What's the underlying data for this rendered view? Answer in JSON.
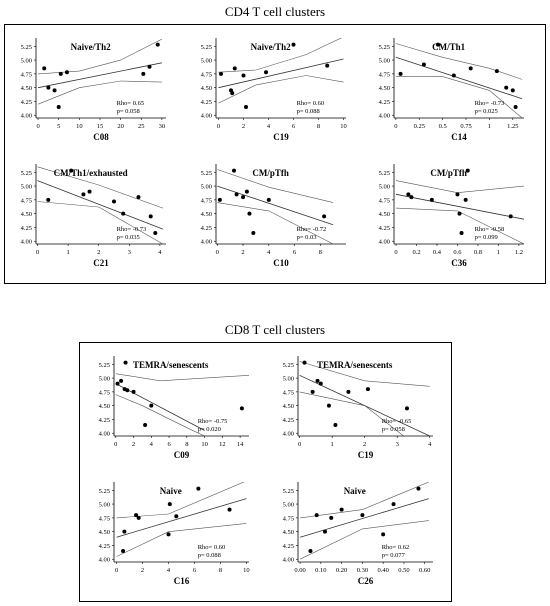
{
  "sections": [
    {
      "title": "CD4 T cell clusters"
    },
    {
      "title": "CD8 T cell clusters"
    }
  ],
  "chart_data": [
    {
      "type": "scatter",
      "group": "CD4",
      "title": "Naive/Th2",
      "xlabel": "C08",
      "xticks": [
        0,
        5,
        10,
        15,
        20,
        25,
        30
      ],
      "yticks": [
        4.0,
        4.25,
        4.5,
        4.75,
        5.0,
        5.25
      ],
      "xlim": [
        -0.5,
        31
      ],
      "ylim": [
        3.95,
        5.4
      ],
      "rho_label": "Rho= 0.65",
      "p_label": "p= 0.058",
      "points": [
        [
          1.5,
          4.85
        ],
        [
          2.5,
          4.5
        ],
        [
          4,
          4.45
        ],
        [
          5,
          4.15
        ],
        [
          5.5,
          4.75
        ],
        [
          7,
          4.78
        ],
        [
          25.5,
          4.75
        ],
        [
          27,
          4.88
        ],
        [
          29,
          5.28
        ]
      ],
      "fit": [
        [
          0,
          4.5
        ],
        [
          30,
          4.95
        ]
      ],
      "ci_upper": [
        [
          0,
          4.75
        ],
        [
          10,
          4.8
        ],
        [
          20,
          5.0
        ],
        [
          30,
          5.38
        ]
      ],
      "ci_lower": [
        [
          0,
          4.2
        ],
        [
          10,
          4.5
        ],
        [
          20,
          4.62
        ],
        [
          30,
          4.6
        ]
      ]
    },
    {
      "type": "scatter",
      "group": "CD4",
      "title": "Naive/Th2",
      "xlabel": "C19",
      "xticks": [
        0,
        2,
        4,
        6,
        8,
        10
      ],
      "yticks": [
        4.0,
        4.25,
        4.5,
        4.75,
        5.0,
        5.25
      ],
      "xlim": [
        -0.2,
        10.2
      ],
      "ylim": [
        3.95,
        5.4
      ],
      "rho_label": "Rho= 0.60",
      "p_label": "p= 0.088",
      "points": [
        [
          0.2,
          4.75
        ],
        [
          1.0,
          4.45
        ],
        [
          1.1,
          4.4
        ],
        [
          1.3,
          4.85
        ],
        [
          2.0,
          4.72
        ],
        [
          2.2,
          4.15
        ],
        [
          3.8,
          4.78
        ],
        [
          6.0,
          5.28
        ],
        [
          8.7,
          4.9
        ]
      ],
      "fit": [
        [
          0,
          4.5
        ],
        [
          10,
          5.02
        ]
      ],
      "ci_upper": [
        [
          0,
          4.78
        ],
        [
          3,
          4.82
        ],
        [
          7,
          5.1
        ],
        [
          10,
          5.42
        ]
      ],
      "ci_lower": [
        [
          0,
          4.22
        ],
        [
          3,
          4.55
        ],
        [
          7,
          4.72
        ],
        [
          10,
          4.6
        ]
      ]
    },
    {
      "type": "scatter",
      "group": "CD4",
      "title": "CM/Th1",
      "xlabel": "C14",
      "xticks": [
        0.0,
        0.25,
        0.5,
        0.75,
        1.0,
        1.25
      ],
      "ytick_labels": [
        "4.00",
        "4.25",
        "4.50",
        "4.75",
        "5.00",
        "5.25"
      ],
      "yticks": [
        4.0,
        4.25,
        4.5,
        4.75,
        5.0,
        5.25
      ],
      "xlim": [
        -0.02,
        1.37
      ],
      "ylim": [
        3.95,
        5.4
      ],
      "rho_label": "Rho= -0.73",
      "p_label": "p= 0.025",
      "points": [
        [
          0.05,
          4.75
        ],
        [
          0.3,
          4.92
        ],
        [
          0.45,
          5.28
        ],
        [
          0.62,
          4.72
        ],
        [
          0.8,
          4.85
        ],
        [
          1.08,
          4.8
        ],
        [
          1.18,
          4.5
        ],
        [
          1.25,
          4.45
        ],
        [
          1.28,
          4.15
        ]
      ],
      "fit": [
        [
          0,
          5.05
        ],
        [
          1.35,
          4.3
        ]
      ],
      "ci_upper": [
        [
          0,
          5.3
        ],
        [
          0.5,
          5.05
        ],
        [
          1.0,
          4.85
        ],
        [
          1.35,
          4.65
        ]
      ],
      "ci_lower": [
        [
          0,
          4.7
        ],
        [
          0.5,
          4.7
        ],
        [
          1.0,
          4.45
        ],
        [
          1.35,
          3.95
        ]
      ]
    },
    {
      "type": "scatter",
      "group": "CD4",
      "title": "CM/Th1/exhausted",
      "xlabel": "C21",
      "xticks": [
        0,
        1,
        2,
        3,
        4
      ],
      "ytick_labels": [
        "4.00",
        "4.25",
        "4.50",
        "4.75",
        "5.00",
        "5.25"
      ],
      "yticks": [
        4.0,
        4.25,
        4.5,
        4.75,
        5.0,
        5.25
      ],
      "xlim": [
        -0.05,
        4.2
      ],
      "ylim": [
        3.95,
        5.4
      ],
      "rho_label": "Rho= -0.73",
      "p_label": "p= 0.035",
      "points": [
        [
          0.35,
          4.75
        ],
        [
          1.1,
          5.28
        ],
        [
          1.5,
          4.85
        ],
        [
          1.7,
          4.9
        ],
        [
          2.5,
          4.72
        ],
        [
          2.8,
          4.5
        ],
        [
          3.3,
          4.8
        ],
        [
          3.7,
          4.45
        ],
        [
          3.85,
          4.15
        ]
      ],
      "fit": [
        [
          0,
          5.1
        ],
        [
          4.1,
          4.22
        ]
      ],
      "ci_upper": [
        [
          0,
          5.35
        ],
        [
          2,
          5.02
        ],
        [
          4.1,
          4.6
        ]
      ],
      "ci_lower": [
        [
          0,
          4.72
        ],
        [
          2,
          4.62
        ],
        [
          4.1,
          3.95
        ]
      ]
    },
    {
      "type": "scatter",
      "group": "CD4",
      "title": "CM/pTfh",
      "xlabel": "C10",
      "xticks": [
        0,
        2,
        4,
        6,
        8
      ],
      "yticks": [
        4.0,
        4.25,
        4.5,
        4.75,
        5.0,
        5.25
      ],
      "xlim": [
        -0.1,
        10
      ],
      "ylim": [
        3.95,
        5.4
      ],
      "rho_label": "Rho= -0.72",
      "p_label": "p= 0.03",
      "points": [
        [
          0.2,
          4.75
        ],
        [
          1.3,
          5.28
        ],
        [
          1.5,
          4.85
        ],
        [
          2.0,
          4.8
        ],
        [
          2.3,
          4.9
        ],
        [
          2.5,
          4.5
        ],
        [
          2.8,
          4.15
        ],
        [
          4.0,
          4.75
        ],
        [
          8.3,
          4.45
        ]
      ],
      "fit": [
        [
          0,
          5.0
        ],
        [
          9,
          4.3
        ]
      ],
      "ci_upper": [
        [
          0,
          5.3
        ],
        [
          4,
          4.98
        ],
        [
          9,
          4.7
        ]
      ],
      "ci_lower": [
        [
          0,
          4.7
        ],
        [
          4,
          4.55
        ],
        [
          9,
          3.95
        ]
      ]
    },
    {
      "type": "scatter",
      "group": "CD4",
      "title": "CM/pTfh",
      "xlabel": "C36",
      "xticks": [
        0.0,
        0.2,
        0.4,
        0.6,
        0.8,
        1.0,
        1.2
      ],
      "ytick_labels": [
        "4.00",
        "4.25",
        "4.50",
        "4.75",
        "5.00",
        "5.25"
      ],
      "yticks": [
        4.0,
        4.25,
        4.5,
        4.75,
        5.0,
        5.25
      ],
      "xlim": [
        -0.02,
        1.25
      ],
      "ylim": [
        3.95,
        5.4
      ],
      "rho_label": "Rho= -0.58",
      "p_label": "p= 0.099",
      "points": [
        [
          0.12,
          4.85
        ],
        [
          0.15,
          4.8
        ],
        [
          0.35,
          4.75
        ],
        [
          0.6,
          4.85
        ],
        [
          0.62,
          4.5
        ],
        [
          0.64,
          4.15
        ],
        [
          0.68,
          4.75
        ],
        [
          0.7,
          5.28
        ],
        [
          1.12,
          4.45
        ]
      ],
      "fit": [
        [
          0,
          4.85
        ],
        [
          1.25,
          4.4
        ]
      ],
      "ci_upper": [
        [
          0,
          5.1
        ],
        [
          0.6,
          4.88
        ],
        [
          1.25,
          5.0
        ]
      ],
      "ci_lower": [
        [
          0,
          4.6
        ],
        [
          0.6,
          4.55
        ],
        [
          1.25,
          3.95
        ]
      ]
    },
    {
      "type": "scatter",
      "group": "CD8",
      "title": "TEMRA/senescents",
      "xlabel": "C09",
      "xticks": [
        0,
        2,
        4,
        6,
        8,
        10,
        12,
        14
      ],
      "yticks": [
        4.0,
        4.25,
        4.5,
        4.75,
        5.0,
        5.25
      ],
      "xlim": [
        -0.2,
        15
      ],
      "ylim": [
        3.95,
        5.4
      ],
      "rho_label": "Rho= -0.75",
      "p_label": "p= 0.020",
      "points": [
        [
          0.2,
          4.9
        ],
        [
          0.6,
          4.95
        ],
        [
          1.0,
          4.8
        ],
        [
          1.1,
          5.28
        ],
        [
          1.3,
          4.78
        ],
        [
          2.0,
          4.75
        ],
        [
          3.3,
          4.15
        ],
        [
          4.0,
          4.5
        ],
        [
          14.2,
          4.45
        ]
      ],
      "fit": [
        [
          0,
          4.9
        ],
        [
          10,
          4.05
        ]
      ],
      "ci_upper": [
        [
          0,
          5.08
        ],
        [
          5,
          4.95
        ],
        [
          10,
          5.0
        ],
        [
          15,
          5.05
        ]
      ],
      "ci_lower": [
        [
          0,
          4.7
        ],
        [
          3,
          4.5
        ],
        [
          8,
          4.1
        ],
        [
          10,
          3.95
        ]
      ]
    },
    {
      "type": "scatter",
      "group": "CD8",
      "title": "TEMRA/senescents",
      "xlabel": "C19",
      "xticks": [
        0,
        1,
        2,
        3,
        4
      ],
      "yticks": [
        4.0,
        4.25,
        4.5,
        4.75,
        5.0,
        5.25
      ],
      "xlim": [
        -0.05,
        4.1
      ],
      "ylim": [
        3.95,
        5.4
      ],
      "rho_label": "Rho= -0.65",
      "p_label": "p= 0.058",
      "points": [
        [
          0.15,
          5.28
        ],
        [
          0.4,
          4.75
        ],
        [
          0.55,
          4.95
        ],
        [
          0.65,
          4.9
        ],
        [
          0.9,
          4.5
        ],
        [
          1.1,
          4.15
        ],
        [
          1.5,
          4.75
        ],
        [
          2.1,
          4.8
        ],
        [
          3.3,
          4.45
        ]
      ],
      "fit": [
        [
          0,
          5.05
        ],
        [
          4,
          3.95
        ]
      ],
      "ci_upper": [
        [
          0,
          5.3
        ],
        [
          2,
          4.95
        ],
        [
          4,
          4.85
        ]
      ],
      "ci_lower": [
        [
          0,
          4.75
        ],
        [
          2,
          4.5
        ],
        [
          3.2,
          3.95
        ]
      ]
    },
    {
      "type": "scatter",
      "group": "CD8",
      "title": "Naive",
      "xlabel": "C16",
      "xticks": [
        0,
        2,
        4,
        6,
        8,
        10
      ],
      "yticks": [
        4.0,
        4.25,
        4.5,
        4.75,
        5.0,
        5.25
      ],
      "xlim": [
        -0.2,
        10.2
      ],
      "ylim": [
        3.95,
        5.4
      ],
      "rho_label": "Rho= 0.60",
      "p_label": "p= 0.088",
      "points": [
        [
          0.5,
          4.15
        ],
        [
          0.6,
          4.5
        ],
        [
          1.5,
          4.8
        ],
        [
          1.7,
          4.75
        ],
        [
          4.0,
          4.45
        ],
        [
          4.1,
          5.0
        ],
        [
          4.6,
          4.78
        ],
        [
          6.3,
          5.28
        ],
        [
          8.7,
          4.9
        ]
      ],
      "fit": [
        [
          0,
          4.4
        ],
        [
          10,
          5.1
        ]
      ],
      "ci_upper": [
        [
          0,
          4.75
        ],
        [
          4,
          4.82
        ],
        [
          10,
          5.42
        ]
      ],
      "ci_lower": [
        [
          0,
          4.05
        ],
        [
          4,
          4.5
        ],
        [
          10,
          4.65
        ]
      ]
    },
    {
      "type": "scatter",
      "group": "CD8",
      "title": "Naive",
      "xlabel": "C26",
      "xticks": [
        0.0,
        0.1,
        0.2,
        0.3,
        0.4,
        0.5,
        0.6
      ],
      "xtick_labels": [
        "0.00",
        "0.10",
        "0.20",
        "0.30",
        "0.40",
        "0.50",
        "0.60"
      ],
      "yticks": [
        4.0,
        4.25,
        4.5,
        4.75,
        5.0,
        5.25
      ],
      "xlim": [
        -0.01,
        0.64
      ],
      "ylim": [
        3.95,
        5.4
      ],
      "rho_label": "Rho= 0.62",
      "p_label": "p= 0.077",
      "points": [
        [
          0.05,
          4.15
        ],
        [
          0.08,
          4.8
        ],
        [
          0.12,
          4.5
        ],
        [
          0.15,
          4.75
        ],
        [
          0.2,
          4.9
        ],
        [
          0.3,
          4.8
        ],
        [
          0.4,
          4.45
        ],
        [
          0.45,
          5.0
        ],
        [
          0.57,
          5.28
        ]
      ],
      "fit": [
        [
          0,
          4.4
        ],
        [
          0.62,
          5.1
        ]
      ],
      "ci_upper": [
        [
          0,
          4.75
        ],
        [
          0.3,
          4.9
        ],
        [
          0.62,
          5.4
        ]
      ],
      "ci_lower": [
        [
          0,
          4.0
        ],
        [
          0.3,
          4.55
        ],
        [
          0.62,
          4.7
        ]
      ]
    }
  ]
}
